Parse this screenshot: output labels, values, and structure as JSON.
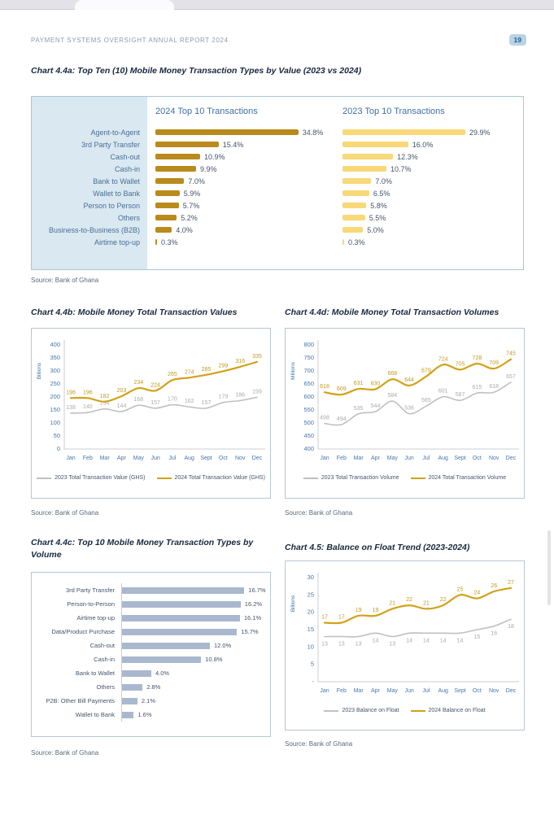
{
  "header": {
    "title": "PAYMENT SYSTEMS OVERSIGHT ANNUAL REPORT 2024",
    "page_number": "19"
  },
  "colors": {
    "gold_2024": "#b98a1c",
    "gold_light_2023": "#f8d877",
    "gold_line": "#d2a119",
    "gray_line": "#c0c0c0",
    "bar_blue_gray": "#a9b8ce",
    "axis_blue": "#4477ad",
    "label_blue_gray": "#44546a",
    "panel_blue": "#d9e8f1"
  },
  "chart_data": [
    {
      "id": "chart44a",
      "type": "bar",
      "orientation": "horizontal",
      "title": "Chart 4.4a: Top Ten (10) Mobile Money Transaction Types by Value (2023 vs 2024)",
      "source": "Source: Bank of Ghana",
      "value_suffix": "%",
      "categories": [
        "Agent-to-Agent",
        "3rd Party Transfer",
        "Cash-out",
        "Cash-in",
        "Bank to Wallet",
        "Wallet to Bank",
        "Person to Person",
        "Others",
        "Business-to-Business (B2B)",
        "Airtime top-up"
      ],
      "series": [
        {
          "name": "2024 Top 10 Transactions",
          "color": "#b98a1c",
          "values": [
            34.8,
            15.4,
            10.9,
            9.9,
            7.0,
            5.9,
            5.7,
            5.2,
            4.0,
            0.3
          ]
        },
        {
          "name": "2023 Top 10 Transactions",
          "color": "#f8d877",
          "values": [
            29.9,
            16.0,
            12.3,
            10.7,
            7.0,
            6.5,
            5.8,
            5.5,
            5.0,
            0.3
          ]
        }
      ]
    },
    {
      "id": "chart44b",
      "type": "line",
      "title": "Chart 4.4b: Mobile Money Total Transaction Values",
      "source": "Source: Bank of Ghana",
      "ylabel": "Billions",
      "ylim": [
        0,
        400
      ],
      "ytick_step": 50,
      "grid": false,
      "legend_position": "bottom",
      "x": [
        "Jan",
        "Feb",
        "Mar",
        "Apr",
        "May",
        "Jun",
        "Jul",
        "Aug",
        "Sept",
        "Oct",
        "Nov",
        "Dec"
      ],
      "series": [
        {
          "name": "2023 Total Transaction Value (GHS)",
          "color": "#c0c0c0",
          "label_color": "#ababab",
          "values": [
            138,
            140,
            154,
            144,
            168,
            157,
            170,
            162,
            157,
            179,
            186,
            199
          ]
        },
        {
          "name": "2024 Total Transaction Value (GHS)",
          "color": "#d2a119",
          "label_color": "#c09a20",
          "values": [
            196,
            196,
            182,
            203,
            234,
            224,
            265,
            274,
            285,
            299,
            316,
            335
          ]
        }
      ]
    },
    {
      "id": "chart44d",
      "type": "line",
      "title": "Chart 4.4d: Mobile Money Total Transaction Volumes",
      "source": "Source: Bank of Ghana",
      "ylabel": "Millions",
      "ylim": [
        400,
        800
      ],
      "ytick_step": 50,
      "grid": false,
      "legend_position": "bottom",
      "x": [
        "Jan",
        "Feb",
        "Mar",
        "Apr",
        "May",
        "Jun",
        "Jul",
        "Aug",
        "Sept",
        "Oct",
        "Nov",
        "Dec"
      ],
      "series": [
        {
          "name": "2023 Total Transaction Volume",
          "color": "#c0c0c0",
          "label_color": "#ababab",
          "values": [
            498,
            494,
            535,
            544,
            584,
            536,
            565,
            601,
            587,
            615,
            618,
            657
          ]
        },
        {
          "name": "2024 Total Transaction Volume",
          "color": "#d2a119",
          "label_color": "#c09a20",
          "values": [
            618,
            609,
            631,
            630,
            668,
            644,
            679,
            724,
            705,
            728,
            709,
            745
          ]
        }
      ]
    },
    {
      "id": "chart44c",
      "type": "bar",
      "orientation": "horizontal",
      "title": "Chart 4.4c: Top 10 Mobile Money Transaction Types by Volume",
      "source": "Source: Bank of Ghana",
      "value_suffix": "%",
      "categories": [
        "3rd Party Transfer",
        "Person-to-Person",
        "Airtime top-up",
        "Data/Product Purchase",
        "Cash-out",
        "Cash-in",
        "Bank to Wallet",
        "Others",
        "P2B: Other Bill Payments",
        "Wallet to Bank"
      ],
      "values": [
        16.7,
        16.2,
        16.1,
        15.7,
        12.0,
        10.8,
        4.0,
        2.8,
        2.1,
        1.6
      ],
      "color": "#a9b8ce"
    },
    {
      "id": "chart45",
      "type": "line",
      "title": "Chart 4.5: Balance on Float Trend (2023-2024)",
      "source": "Source: Bank of Ghana",
      "ylabel": "Billions",
      "ylim": [
        0,
        30
      ],
      "ytick_step": 5,
      "zero_label": "-",
      "grid": false,
      "legend_position": "bottom",
      "x": [
        "Jan",
        "Feb",
        "Mar",
        "Apr",
        "May",
        "Jun",
        "Jul",
        "Aug",
        "Sept",
        "Oct",
        "Nov",
        "Dec"
      ],
      "series": [
        {
          "name": "2023 Balance on Float",
          "color": "#c0c0c0",
          "label_color": "#ababab",
          "label_below": true,
          "values": [
            13,
            13,
            13,
            14,
            13,
            14,
            14,
            14,
            14,
            15,
            16,
            18
          ]
        },
        {
          "name": "2024 Balance on Float",
          "color": "#d2a119",
          "label_color": "#c09a20",
          "values": [
            17,
            17,
            19,
            19,
            21,
            22,
            21,
            22,
            25,
            24,
            26,
            27
          ]
        }
      ]
    }
  ]
}
